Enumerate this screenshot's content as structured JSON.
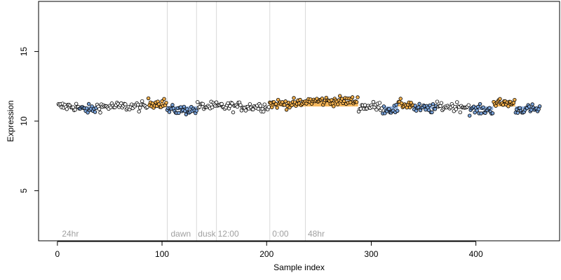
{
  "chart_data": {
    "type": "scatter",
    "xlabel": "Sample index",
    "ylabel": "Expression",
    "xlim": [
      -18,
      480
    ],
    "ylim": [
      1.4,
      18.6
    ],
    "xticks": [
      0,
      100,
      200,
      300,
      400
    ],
    "yticks": [
      5,
      10,
      15
    ],
    "n_points": 461,
    "baseline": 11.05,
    "colors": {
      "neutral": "#000000",
      "high": "#f5b14d",
      "low": "#7aa3da",
      "high_bar": "#f5b14d",
      "low_bar": "#8aaee0",
      "vline": "#d9d9d9",
      "annotation": "#a0a0a0"
    },
    "vlines": [
      105,
      133,
      152,
      203,
      237
    ],
    "annotations": [
      {
        "x": 3,
        "text": "24hr"
      },
      {
        "x": 107,
        "text": "dawn"
      },
      {
        "x": 133,
        "text": "dusk"
      },
      {
        "x": 152,
        "text": "12:00"
      },
      {
        "x": 204,
        "text": "0:00"
      },
      {
        "x": 238,
        "text": "48hr"
      }
    ],
    "segments": [
      {
        "start": 1,
        "end": 20,
        "mean": 11.05,
        "class": "neutral"
      },
      {
        "start": 21,
        "end": 37,
        "mean": 10.85,
        "class": "low"
      },
      {
        "start": 38,
        "end": 86,
        "mean": 11.05,
        "class": "neutral"
      },
      {
        "start": 87,
        "end": 104,
        "mean": 11.3,
        "class": "high"
      },
      {
        "start": 105,
        "end": 133,
        "mean": 10.8,
        "class": "low"
      },
      {
        "start": 134,
        "end": 202,
        "mean": 11.05,
        "class": "neutral"
      },
      {
        "start": 203,
        "end": 236,
        "mean": 11.25,
        "class": "high"
      },
      {
        "start": 237,
        "end": 287,
        "mean": 11.45,
        "class": "high"
      },
      {
        "start": 288,
        "end": 310,
        "mean": 11.05,
        "class": "neutral"
      },
      {
        "start": 311,
        "end": 325,
        "mean": 10.85,
        "class": "low"
      },
      {
        "start": 326,
        "end": 340,
        "mean": 11.2,
        "class": "high"
      },
      {
        "start": 341,
        "end": 362,
        "mean": 10.9,
        "class": "low"
      },
      {
        "start": 363,
        "end": 393,
        "mean": 11.05,
        "class": "neutral"
      },
      {
        "start": 394,
        "end": 416,
        "mean": 10.8,
        "class": "low"
      },
      {
        "start": 417,
        "end": 437,
        "mean": 11.3,
        "class": "high"
      },
      {
        "start": 438,
        "end": 461,
        "mean": 10.85,
        "class": "low"
      }
    ]
  }
}
